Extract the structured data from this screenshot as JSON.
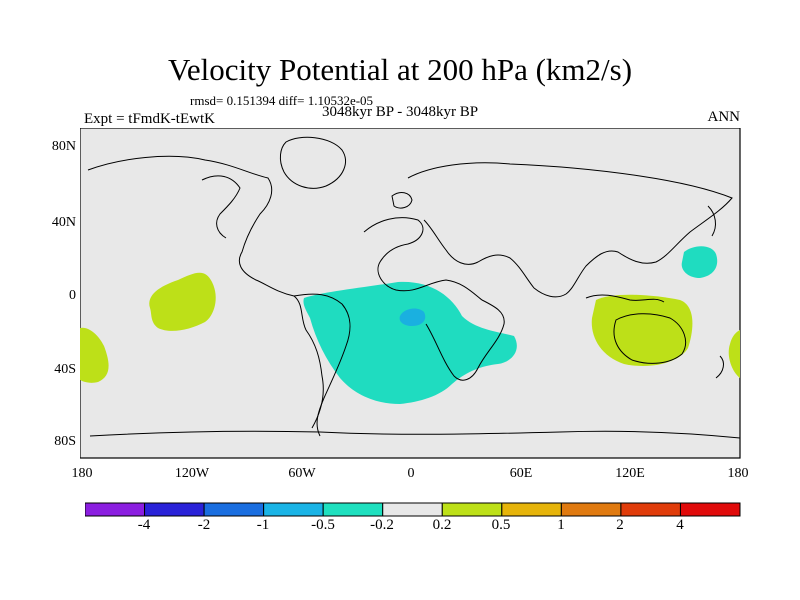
{
  "figure": {
    "title": "Velocity Potential at 200 hPa (km2/s)",
    "stats": "rmsd= 0.151394  diff= 1.10532e-05",
    "experiment": "Expt = tFmdK-tEwtK",
    "period": "3048kyr BP - 3048kyr BP",
    "season": "ANN"
  },
  "axes": {
    "lat_ticks": [
      "80N",
      "40N",
      "0",
      "40S",
      "80S"
    ],
    "lon_ticks": [
      "180",
      "120W",
      "60W",
      "0",
      "60E",
      "120E",
      "180"
    ]
  },
  "legend": {
    "labels": [
      "-4",
      "-2",
      "-1",
      "-0.5",
      "-0.2",
      "0.2",
      "0.5",
      "1",
      "2",
      "4"
    ],
    "colors": [
      "#8b1ee0",
      "#2a22d8",
      "#1a6ee0",
      "#1ab4e6",
      "#1fe0bf",
      "#e8e8e8",
      "#bde018",
      "#e6b40a",
      "#e07a10",
      "#e03c0a",
      "#e00a0a"
    ]
  },
  "colors": {
    "ocean_background": "#e8e8e8",
    "positive_fill": "#bde018",
    "negative_fill": "#1fdcc0",
    "negative_core": "#1ab0e0",
    "coast": "#000000"
  }
}
